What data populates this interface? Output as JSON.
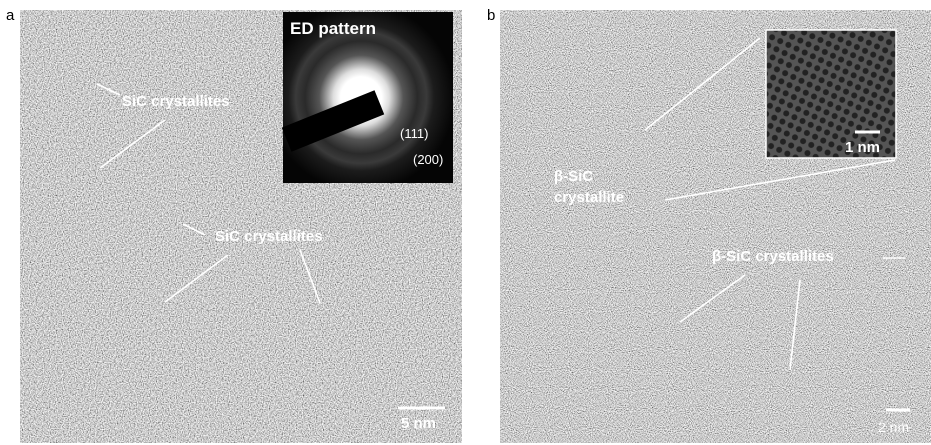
{
  "panels": [
    {
      "label": "a",
      "inset": {
        "title": "ED pattern",
        "rings": [
          "(111)",
          "(200)"
        ]
      },
      "annotations": [
        "SiC crystallites",
        "SiC crystallites"
      ],
      "scale_bar": "5 nm"
    },
    {
      "label": "b",
      "inset": {
        "scale_bar": "1 nm"
      },
      "annotations": [
        "β-SiC",
        "crystallite",
        "β-SiC crystallites"
      ],
      "scale_bar": "2 nm"
    }
  ]
}
